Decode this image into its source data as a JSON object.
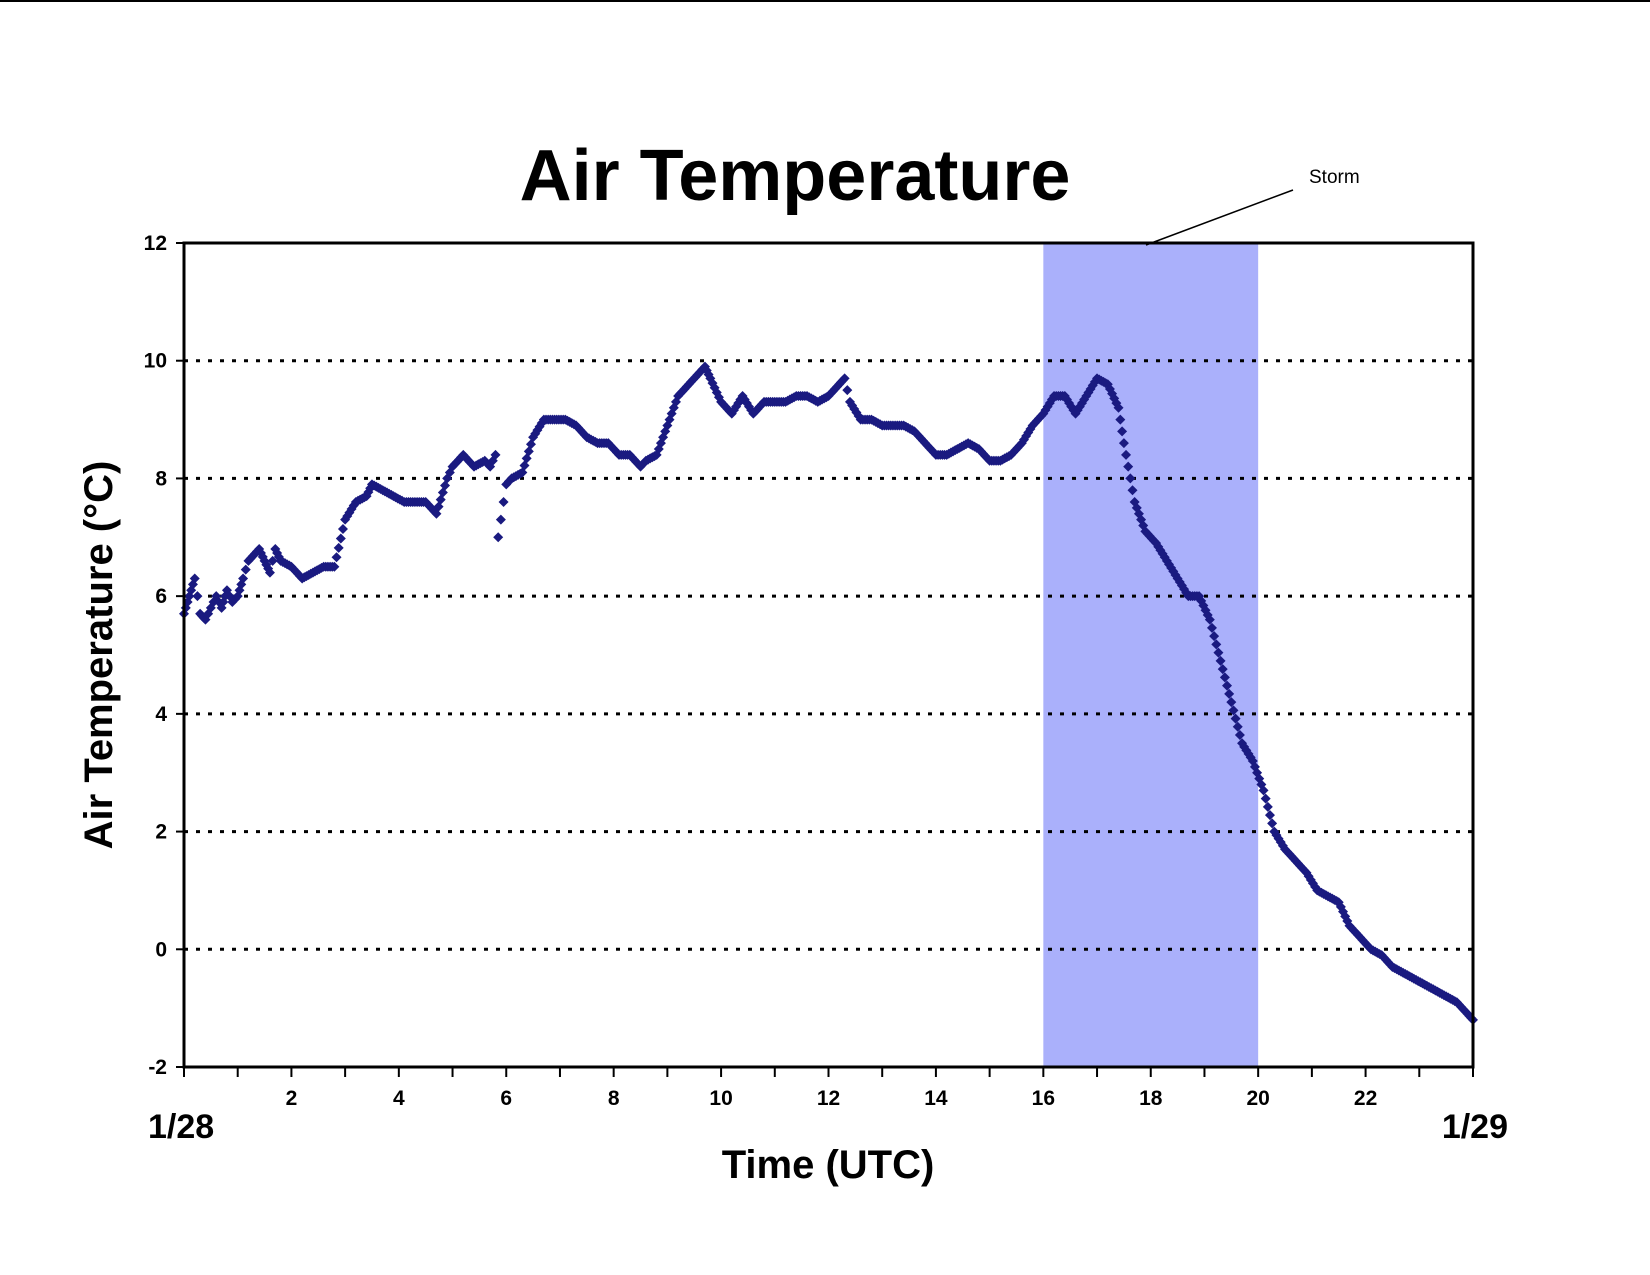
{
  "chart_data": {
    "type": "scatter",
    "title": "Air Temperature",
    "xlabel": "Time (UTC)",
    "ylabel": "Air Temperature (°C)",
    "xlim": [
      0,
      24
    ],
    "ylim": [
      -2,
      12
    ],
    "x_ticks": [
      2,
      4,
      6,
      8,
      10,
      12,
      14,
      16,
      18,
      20,
      22
    ],
    "y_ticks": [
      -2,
      0,
      2,
      4,
      6,
      8,
      10,
      12
    ],
    "x_start_label": "1/28",
    "x_end_label": "1/29",
    "grid": "horizontal dotted",
    "marker_color": "#1a1a80",
    "highlight_color": "#aab0fb",
    "storm_window": {
      "label": "Storm",
      "x_range": [
        16,
        20
      ]
    },
    "series": [
      {
        "marker": "diamond",
        "x": [
          0.0,
          0.1,
          0.2,
          0.3,
          0.4,
          0.5,
          0.6,
          0.7,
          0.8,
          0.9,
          1.0,
          1.1,
          1.2,
          1.4,
          1.5,
          1.6,
          1.7,
          1.8,
          2.0,
          2.2,
          2.4,
          2.6,
          2.8,
          3.0,
          3.2,
          3.4,
          3.5,
          3.7,
          3.9,
          4.1,
          4.3,
          4.5,
          4.7,
          4.9,
          5.0,
          5.2,
          5.4,
          5.6,
          5.7,
          5.8,
          5.85,
          5.9,
          6.0,
          6.1,
          6.3,
          6.5,
          6.7,
          6.9,
          7.1,
          7.3,
          7.5,
          7.7,
          7.9,
          8.1,
          8.3,
          8.5,
          8.6,
          8.8,
          9.0,
          9.2,
          9.4,
          9.6,
          9.7,
          9.8,
          10.0,
          10.2,
          10.4,
          10.6,
          10.8,
          11.0,
          11.2,
          11.4,
          11.6,
          11.8,
          12.0,
          12.2,
          12.3,
          12.4,
          12.6,
          12.8,
          13.0,
          13.2,
          13.4,
          13.6,
          13.8,
          14.0,
          14.2,
          14.4,
          14.6,
          14.8,
          15.0,
          15.2,
          15.4,
          15.6,
          15.8,
          16.0,
          16.2,
          16.4,
          16.6,
          16.8,
          17.0,
          17.2,
          17.4,
          17.5,
          17.7,
          17.9,
          18.1,
          18.3,
          18.5,
          18.7,
          18.9,
          19.1,
          19.3,
          19.5,
          19.7,
          19.9,
          20.1,
          20.3,
          20.5,
          20.7,
          20.9,
          21.1,
          21.3,
          21.5,
          21.7,
          21.9,
          22.1,
          22.3,
          22.5,
          22.7,
          22.9,
          23.1,
          23.3,
          23.5,
          23.7,
          23.9,
          24.0
        ],
        "y": [
          5.7,
          6.0,
          6.3,
          5.7,
          5.6,
          5.8,
          6.0,
          5.8,
          6.1,
          5.9,
          6.0,
          6.3,
          6.6,
          6.8,
          6.6,
          6.4,
          6.8,
          6.6,
          6.5,
          6.3,
          6.4,
          6.5,
          6.5,
          7.3,
          7.6,
          7.7,
          7.9,
          7.8,
          7.7,
          7.6,
          7.6,
          7.6,
          7.4,
          8.0,
          8.2,
          8.4,
          8.2,
          8.3,
          8.2,
          8.4,
          7.0,
          7.3,
          7.9,
          8.0,
          8.1,
          8.7,
          9.0,
          9.0,
          9.0,
          8.9,
          8.7,
          8.6,
          8.6,
          8.4,
          8.4,
          8.2,
          8.3,
          8.4,
          8.9,
          9.4,
          9.6,
          9.8,
          9.9,
          9.7,
          9.3,
          9.1,
          9.4,
          9.1,
          9.3,
          9.3,
          9.3,
          9.4,
          9.4,
          9.3,
          9.4,
          9.6,
          9.7,
          9.3,
          9.0,
          9.0,
          8.9,
          8.9,
          8.9,
          8.8,
          8.6,
          8.4,
          8.4,
          8.5,
          8.6,
          8.5,
          8.3,
          8.3,
          8.4,
          8.6,
          8.9,
          9.1,
          9.4,
          9.4,
          9.1,
          9.4,
          9.7,
          9.6,
          9.2,
          8.6,
          7.6,
          7.1,
          6.9,
          6.6,
          6.3,
          6.0,
          6.0,
          5.6,
          4.9,
          4.2,
          3.5,
          3.2,
          2.7,
          2.0,
          1.7,
          1.5,
          1.3,
          1.0,
          0.9,
          0.8,
          0.4,
          0.2,
          0.0,
          -0.1,
          -0.3,
          -0.4,
          -0.5,
          -0.6,
          -0.7,
          -0.8,
          -0.9,
          -1.1,
          -1.2
        ]
      }
    ]
  }
}
